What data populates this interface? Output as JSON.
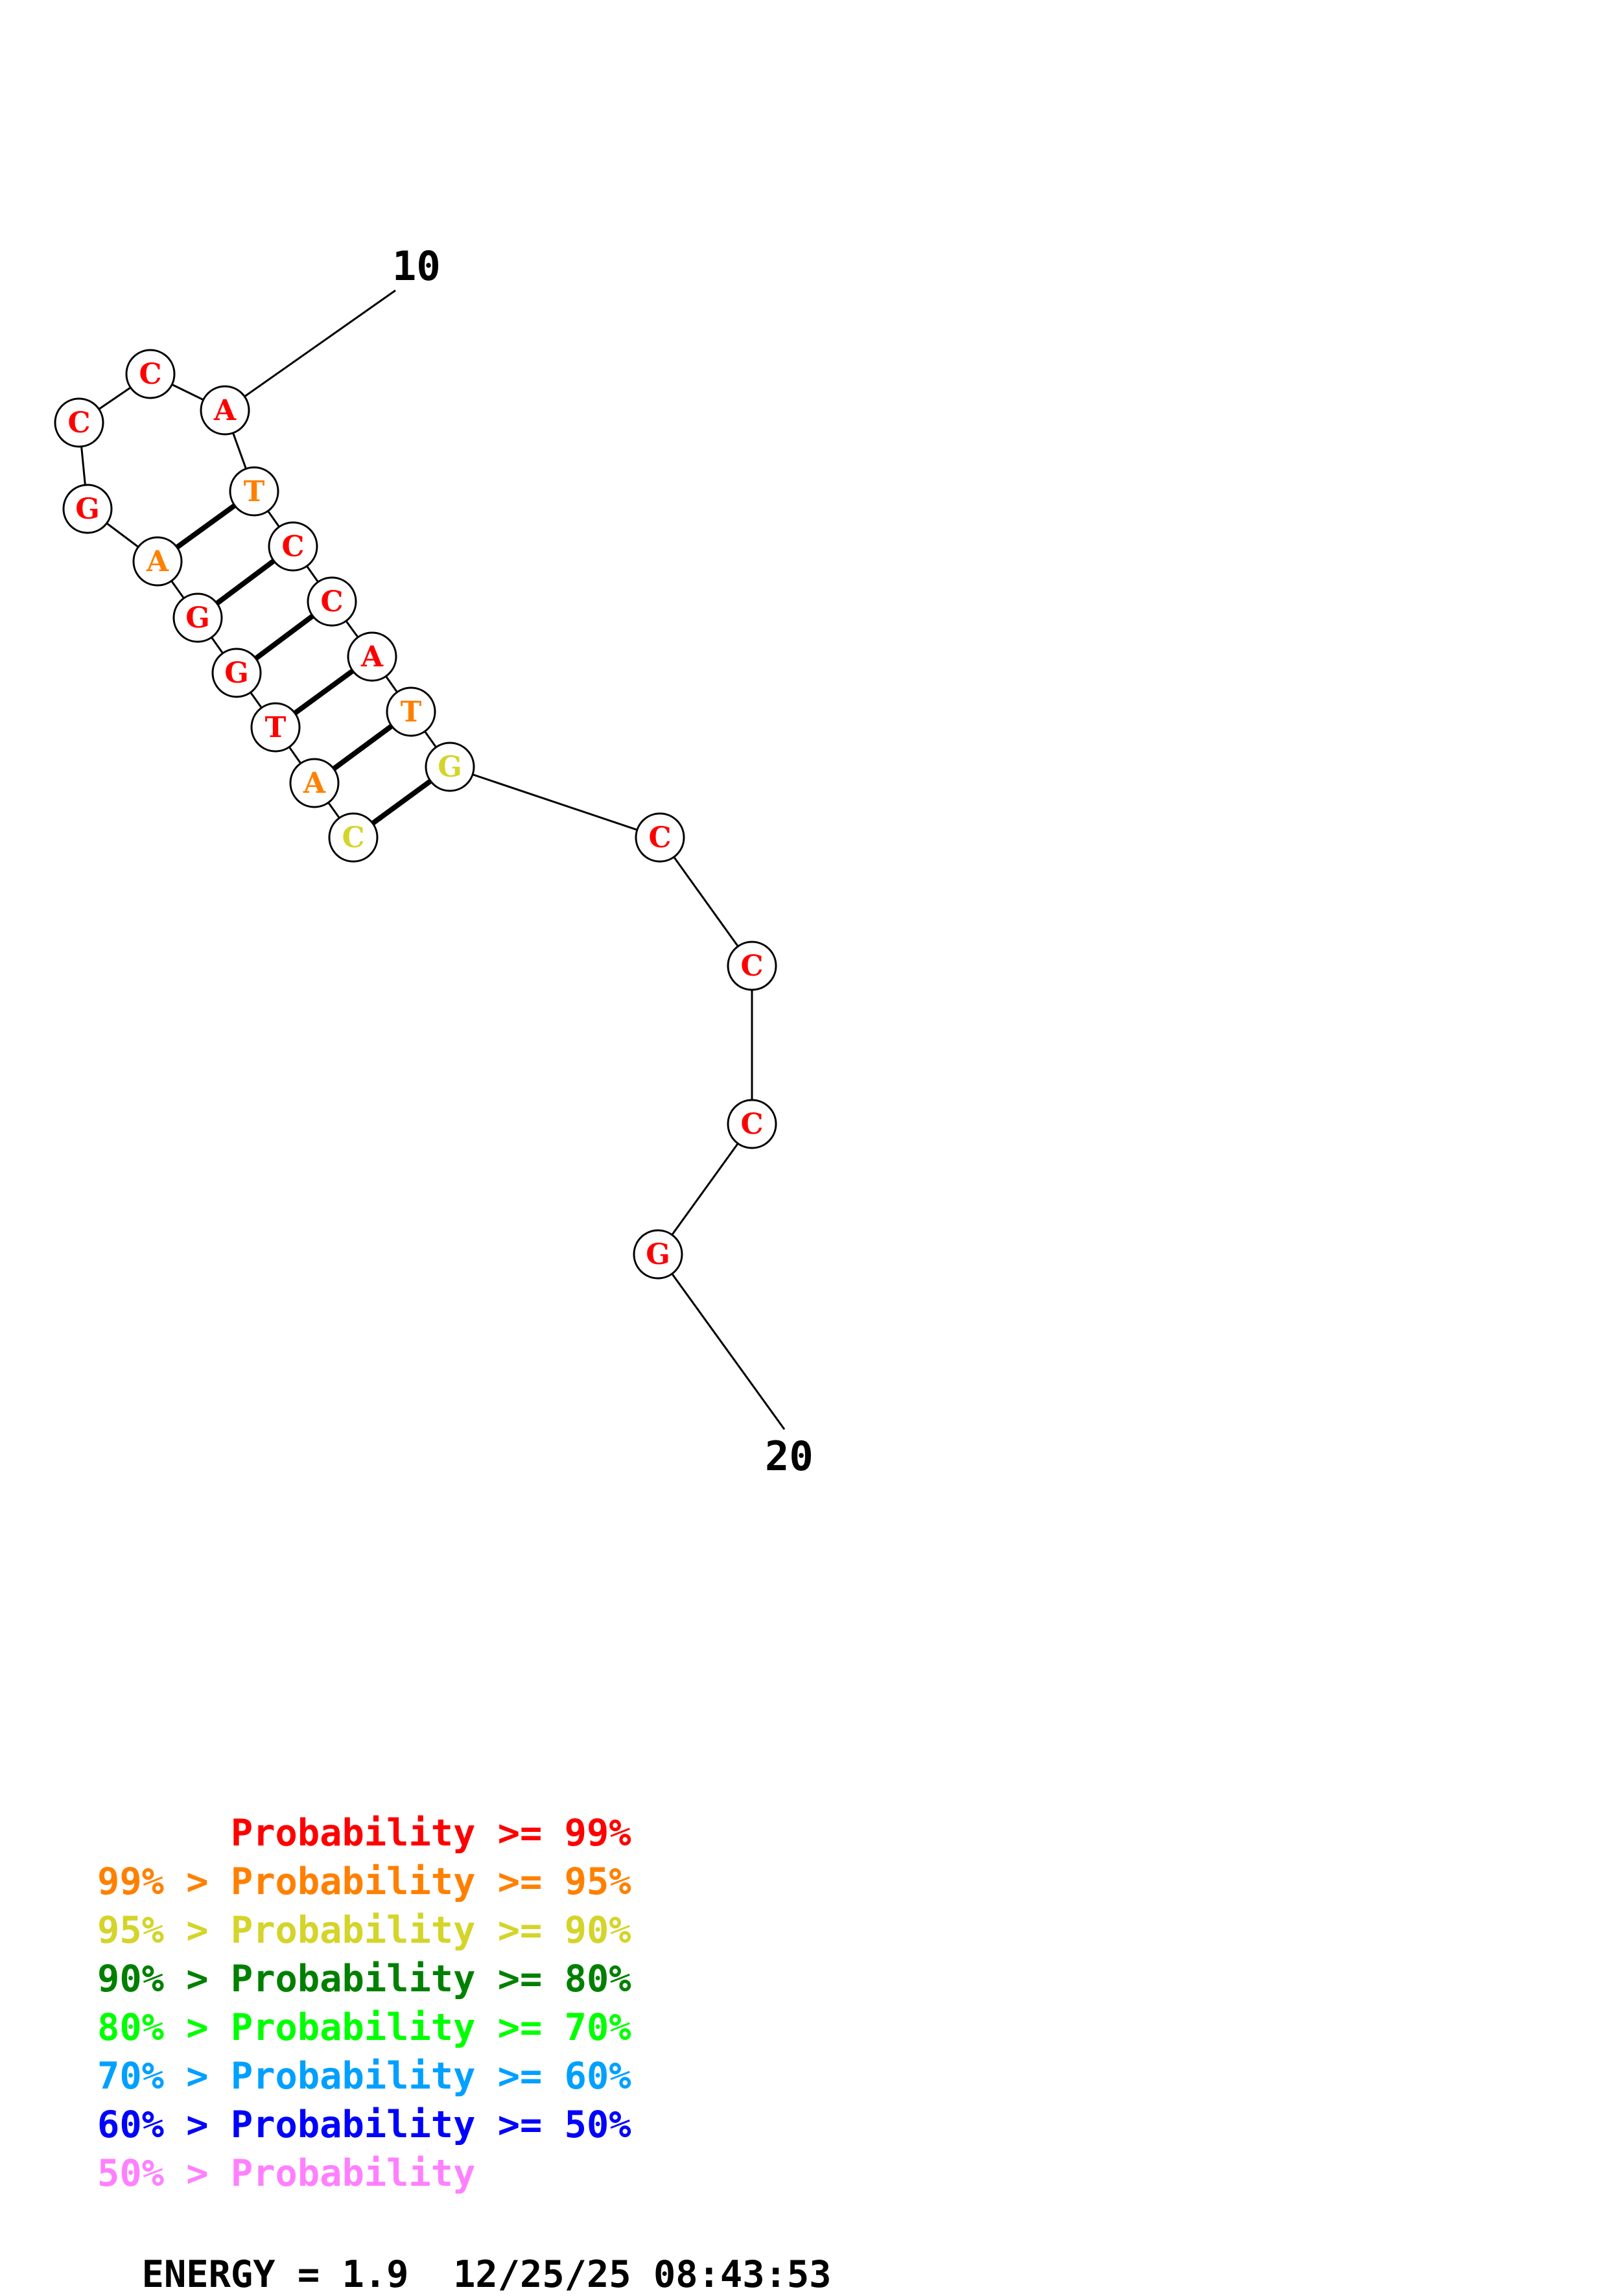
{
  "colors": {
    "p99": "#ff0000",
    "p95": "#ff8000",
    "p90": "#d4d42a",
    "p80": "#008000",
    "p70": "#00ff00",
    "p60": "#00a0ff",
    "p50": "#0000ff",
    "plow": "#ff80ff",
    "black": "#000000"
  },
  "labels": {
    "start": "10",
    "end": "20"
  },
  "nucleotides": [
    {
      "base": "C",
      "color": "p90"
    },
    {
      "base": "A",
      "color": "p95"
    },
    {
      "base": "T",
      "color": "p99"
    },
    {
      "base": "G",
      "color": "p99"
    },
    {
      "base": "G",
      "color": "p99"
    },
    {
      "base": "A",
      "color": "p95"
    },
    {
      "base": "G",
      "color": "p99"
    },
    {
      "base": "C",
      "color": "p99"
    },
    {
      "base": "C",
      "color": "p99"
    },
    {
      "base": "A",
      "color": "p99"
    },
    {
      "base": "T",
      "color": "p95"
    },
    {
      "base": "C",
      "color": "p99"
    },
    {
      "base": "C",
      "color": "p99"
    },
    {
      "base": "A",
      "color": "p99"
    },
    {
      "base": "T",
      "color": "p95"
    },
    {
      "base": "G",
      "color": "p90"
    },
    {
      "base": "C",
      "color": "p99"
    },
    {
      "base": "C",
      "color": "p99"
    },
    {
      "base": "C",
      "color": "p99"
    },
    {
      "base": "G",
      "color": "p99"
    }
  ],
  "pairs": [
    [
      0,
      15
    ],
    [
      1,
      14
    ],
    [
      2,
      13
    ],
    [
      3,
      12
    ],
    [
      4,
      11
    ],
    [
      5,
      10
    ]
  ],
  "legend": [
    {
      "prefix": "",
      "text": "Probability >= 99%",
      "color": "p99"
    },
    {
      "prefix": "99% > ",
      "text": "Probability >= 95%",
      "color": "p95"
    },
    {
      "prefix": "95% > ",
      "text": "Probability >= 90%",
      "color": "p90"
    },
    {
      "prefix": "90% > ",
      "text": "Probability >= 80%",
      "color": "p80"
    },
    {
      "prefix": "80% > ",
      "text": "Probability >= 70%",
      "color": "p70"
    },
    {
      "prefix": "70% > ",
      "text": "Probability >= 60%",
      "color": "p60"
    },
    {
      "prefix": "60% > ",
      "text": "Probability >= 50%",
      "color": "p50"
    },
    {
      "prefix": "50% > ",
      "text": "Probability",
      "color": "plow"
    }
  ],
  "footer": {
    "energy_label": "ENERGY = 1.9",
    "timestamp": "12/25/25 08:43:53"
  }
}
